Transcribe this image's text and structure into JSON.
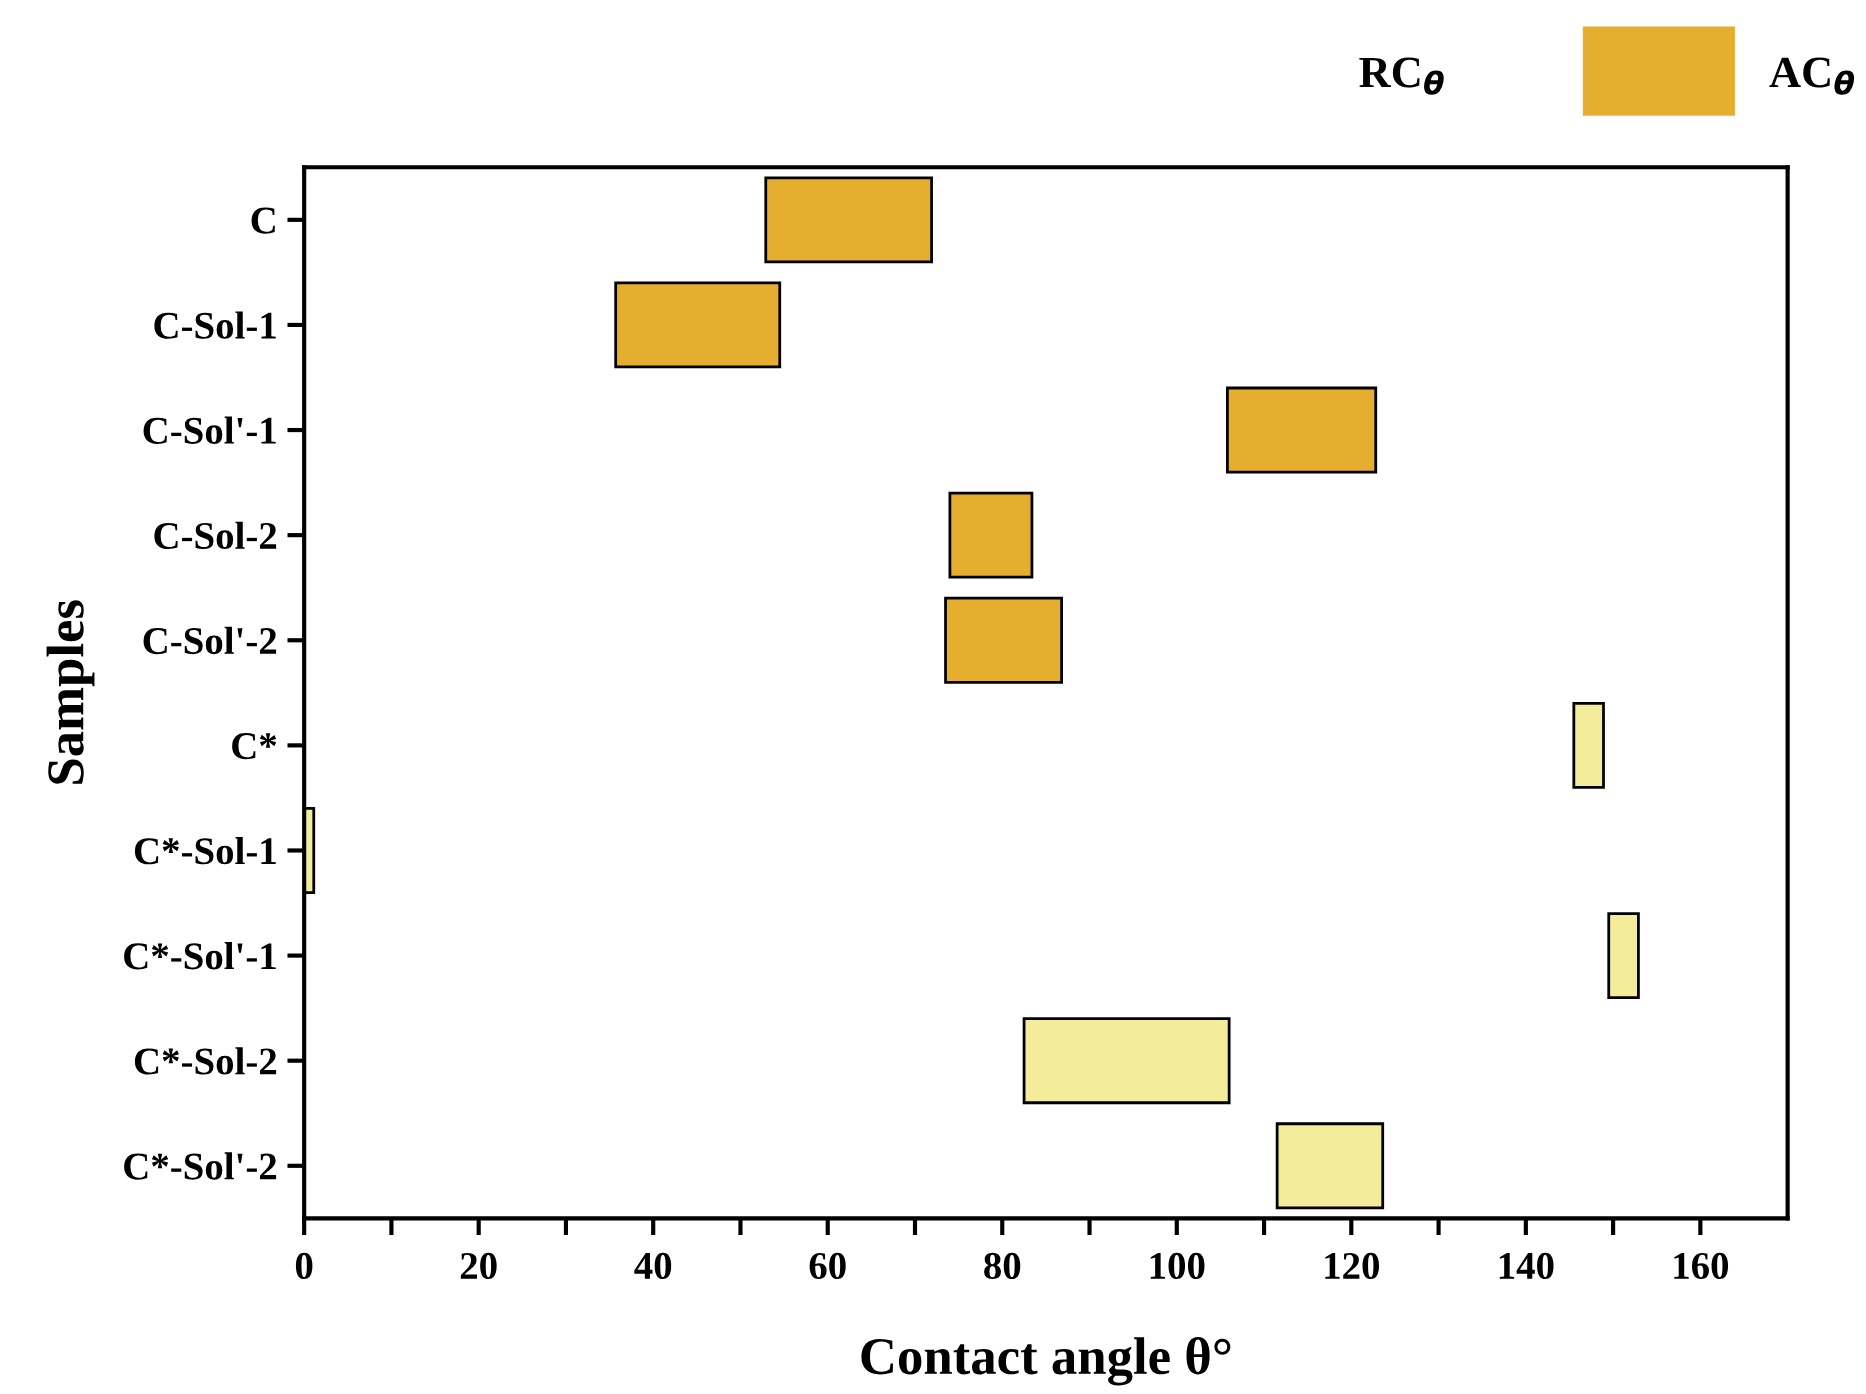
{
  "chart_data": {
    "type": "bar",
    "orientation": "horizontal",
    "categories": [
      "C",
      "C-Sol-1",
      "C-Sol'-1",
      "C-Sol-2",
      "C-Sol'-2",
      "C*",
      "C*-Sol-1",
      "C*-Sol'-1",
      "C*-Sol-2",
      "C*-Sol'-2"
    ],
    "base": [
      52.9,
      35.7,
      105.8,
      74.0,
      73.5,
      145.5,
      0,
      149.5,
      82.5,
      111.5
    ],
    "values": [
      19.0,
      18.8,
      17.0,
      9.4,
      13.3,
      3.4,
      1.1,
      3.4,
      23.5,
      12.1
    ],
    "colors": [
      "#e6ae2f",
      "#e6ae2f",
      "#e6ae2f",
      "#e6ae2f",
      "#e6ae2f",
      "#f2ec9b",
      "#f2ec9b",
      "#f2ec9b",
      "#f2ec9b",
      "#f2ec9b"
    ],
    "xlabel": "Contact angle θ°",
    "ylabel": "Samples",
    "xlim": [
      0,
      170
    ],
    "xticks": [
      0,
      {
        "value": 10,
        "label": null
      },
      20,
      {
        "value": 30,
        "label": null
      },
      40,
      {
        "value": 50,
        "label": null
      },
      60,
      {
        "value": 70,
        "label": null
      },
      80,
      {
        "value": 90,
        "label": null
      },
      100,
      {
        "value": 110,
        "label": null
      },
      120,
      {
        "value": 130,
        "label": null
      },
      140,
      {
        "value": 150,
        "label": null
      },
      160
    ],
    "annotations": [
      "RC$_{θ}$",
      "AC$_{θ}$"
    ],
    "grid": false
  }
}
